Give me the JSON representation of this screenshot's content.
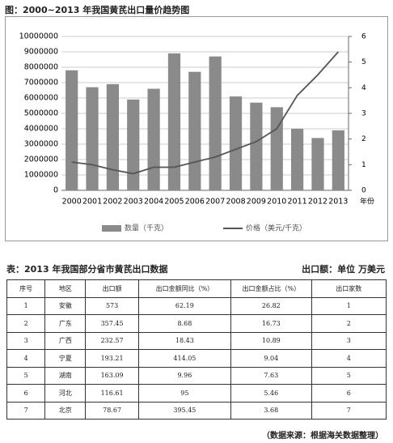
{
  "chart_data": {
    "type": "bar-line",
    "title": "图：2000~2013 年我国黄芪出口量价趋势图",
    "categories": [
      "2000",
      "2001",
      "2002",
      "2003",
      "2004",
      "2005",
      "2006",
      "2007",
      "2008",
      "2009",
      "2010",
      "2011",
      "2012",
      "2013"
    ],
    "x_label": "年份",
    "series": [
      {
        "name": "数量（千克）",
        "type": "bar",
        "color": "#8a8a8a",
        "values": [
          7800000,
          6700000,
          6900000,
          5900000,
          6600000,
          8900000,
          7700000,
          8700000,
          6100000,
          5700000,
          5400000,
          4000000,
          3400000,
          3900000
        ]
      },
      {
        "name": "价格（美元/千克）",
        "type": "line",
        "axis": "y2",
        "color": "#555555",
        "values": [
          1.1,
          1.0,
          0.8,
          0.65,
          0.9,
          0.9,
          1.1,
          1.3,
          1.6,
          1.9,
          2.4,
          3.7,
          4.5,
          5.4
        ]
      }
    ],
    "ylim": [
      0,
      10000000
    ],
    "yticks": [
      0,
      1000000,
      2000000,
      3000000,
      4000000,
      5000000,
      6000000,
      7000000,
      8000000,
      9000000,
      10000000
    ],
    "y2lim": [
      0,
      6
    ],
    "y2ticks": [
      0,
      1,
      2,
      3,
      4,
      5,
      6
    ],
    "grid": true
  },
  "table": {
    "title": "表：2013 年我国部分省市黄芪出口数据",
    "unit": "出口额：单位  万美元",
    "headers": [
      "序号",
      "地区",
      "出口额",
      "出口金额同比（%）",
      "出口金额占比（%）",
      "出口家数"
    ],
    "rows": [
      [
        "1",
        "安徽",
        "573",
        "62.19",
        "26.82",
        "1"
      ],
      [
        "2",
        "广东",
        "357.45",
        "8.68",
        "16.73",
        "2"
      ],
      [
        "3",
        "广西",
        "232.57",
        "18.43",
        "10.89",
        "3"
      ],
      [
        "4",
        "宁夏",
        "193.21",
        "414.05",
        "9.04",
        "4"
      ],
      [
        "5",
        "湖南",
        "163.09",
        "9.96",
        "7.63",
        "5"
      ],
      [
        "6",
        "河北",
        "116.61",
        "95",
        "5.46",
        "6"
      ],
      [
        "7",
        "北京",
        "78.67",
        "395.45",
        "3.68",
        "7"
      ]
    ]
  },
  "source": "（数据来源：根据海关数据整理）"
}
